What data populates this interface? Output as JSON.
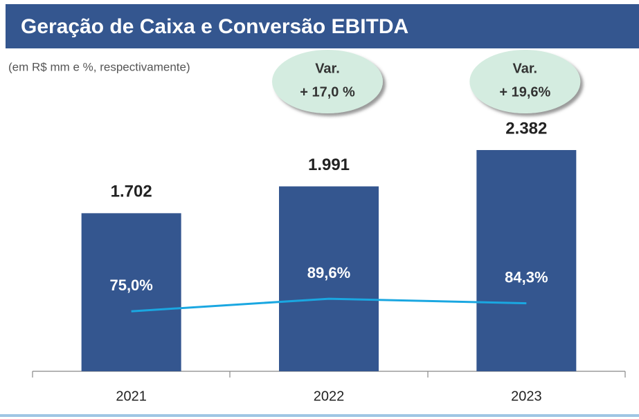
{
  "chart_data": {
    "type": "bar",
    "title": "Geração de Caixa e Conversão EBITDA",
    "subtitle": "(em R$ mm e %, respectivamente)",
    "categories": [
      "2021",
      "2022",
      "2023"
    ],
    "series": [
      {
        "name": "Geração de Caixa",
        "type": "bar",
        "color": "#34568f",
        "values": [
          1702,
          1991,
          2382
        ],
        "value_labels": [
          "1.702",
          "1.991",
          "2.382"
        ]
      },
      {
        "name": "Conversão EBITDA",
        "type": "line",
        "axis": "y2",
        "color": "#1aa7e1",
        "values": [
          75.0,
          89.6,
          84.3
        ],
        "value_labels": [
          "75,0%",
          "89,6%",
          "84,3%"
        ]
      }
    ],
    "annotations": [
      [
        "Var.",
        "+ 17,0 %"
      ],
      [
        "Var.",
        "+ 19,6%"
      ]
    ],
    "ylim": [
      0,
      3000
    ],
    "y2lim": [
      5,
      330
    ]
  }
}
